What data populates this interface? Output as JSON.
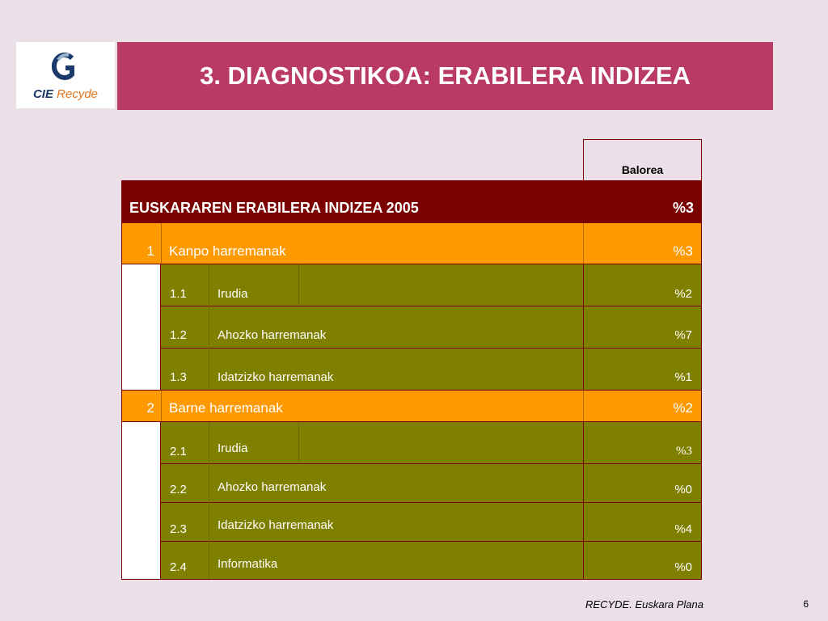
{
  "logo": {
    "brand_first": "CIE",
    "brand_second": "Recyde"
  },
  "title": "3. DIAGNOSTIKOA: ERABILERA INDIZEA",
  "table": {
    "column_header": "Balorea",
    "total": {
      "label": "EUSKARAREN ERABILERA INDIZEA  2005",
      "value": "%3"
    },
    "groups": [
      {
        "num": "1",
        "label": "Kanpo harremanak",
        "value": "%3",
        "items": [
          {
            "num": "1.1",
            "label": "Irudia",
            "value": "%2"
          },
          {
            "num": "1.2",
            "label": "Ahozko harremanak",
            "value": "%7"
          },
          {
            "num": "1.3",
            "label": "Idatzizko harremanak",
            "value": "%1"
          }
        ]
      },
      {
        "num": "2",
        "label": "Barne harremanak",
        "value": "%2",
        "items": [
          {
            "num": "2.1",
            "label": "Irudia",
            "value": "%3"
          },
          {
            "num": "2.2",
            "label": "Ahozko harremanak",
            "value": "%0"
          },
          {
            "num": "2.3",
            "label": "Idatzizko harremanak",
            "value": "%4"
          },
          {
            "num": "2.4",
            "label": "Informatika",
            "value": "%0"
          }
        ]
      }
    ]
  },
  "footer": {
    "text": "RECYDE. Euskara Plana",
    "page": "6"
  },
  "colors": {
    "background": "#EBDFE8",
    "title_bar": "#BA3A66",
    "total_row": "#7B0000",
    "group_row": "#FF9900",
    "item_row": "#808000",
    "border": "#7B0000"
  }
}
